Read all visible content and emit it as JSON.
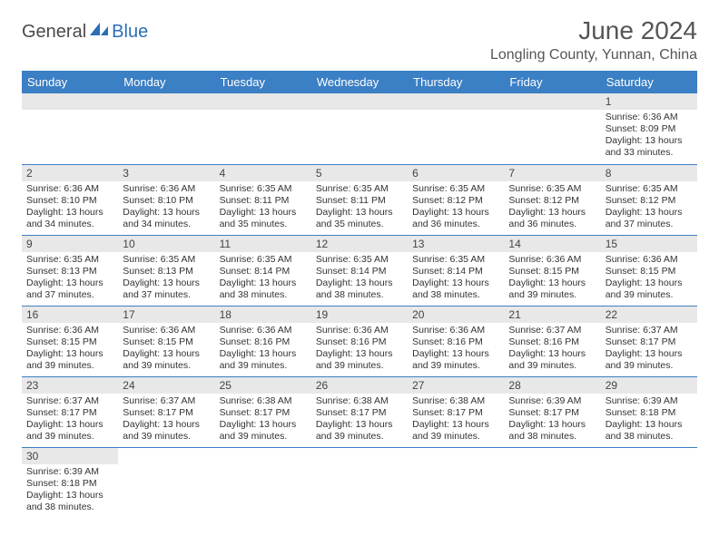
{
  "logo": {
    "part1": "General",
    "part2": "Blue"
  },
  "title": "June 2024",
  "location": "Longling County, Yunnan, China",
  "colors": {
    "header_bg": "#3b7fc4",
    "header_text": "#ffffff",
    "daynum_bg": "#e8e8e8",
    "border": "#3b7fc4",
    "logo_gray": "#4a4a4a",
    "logo_blue": "#2a6fb5"
  },
  "weekdays": [
    "Sunday",
    "Monday",
    "Tuesday",
    "Wednesday",
    "Thursday",
    "Friday",
    "Saturday"
  ],
  "weeks": [
    [
      null,
      null,
      null,
      null,
      null,
      null,
      {
        "n": "1",
        "sr": "6:36 AM",
        "ss": "8:09 PM",
        "dl": "13 hours and 33 minutes."
      }
    ],
    [
      {
        "n": "2",
        "sr": "6:36 AM",
        "ss": "8:10 PM",
        "dl": "13 hours and 34 minutes."
      },
      {
        "n": "3",
        "sr": "6:36 AM",
        "ss": "8:10 PM",
        "dl": "13 hours and 34 minutes."
      },
      {
        "n": "4",
        "sr": "6:35 AM",
        "ss": "8:11 PM",
        "dl": "13 hours and 35 minutes."
      },
      {
        "n": "5",
        "sr": "6:35 AM",
        "ss": "8:11 PM",
        "dl": "13 hours and 35 minutes."
      },
      {
        "n": "6",
        "sr": "6:35 AM",
        "ss": "8:12 PM",
        "dl": "13 hours and 36 minutes."
      },
      {
        "n": "7",
        "sr": "6:35 AM",
        "ss": "8:12 PM",
        "dl": "13 hours and 36 minutes."
      },
      {
        "n": "8",
        "sr": "6:35 AM",
        "ss": "8:12 PM",
        "dl": "13 hours and 37 minutes."
      }
    ],
    [
      {
        "n": "9",
        "sr": "6:35 AM",
        "ss": "8:13 PM",
        "dl": "13 hours and 37 minutes."
      },
      {
        "n": "10",
        "sr": "6:35 AM",
        "ss": "8:13 PM",
        "dl": "13 hours and 37 minutes."
      },
      {
        "n": "11",
        "sr": "6:35 AM",
        "ss": "8:14 PM",
        "dl": "13 hours and 38 minutes."
      },
      {
        "n": "12",
        "sr": "6:35 AM",
        "ss": "8:14 PM",
        "dl": "13 hours and 38 minutes."
      },
      {
        "n": "13",
        "sr": "6:35 AM",
        "ss": "8:14 PM",
        "dl": "13 hours and 38 minutes."
      },
      {
        "n": "14",
        "sr": "6:36 AM",
        "ss": "8:15 PM",
        "dl": "13 hours and 39 minutes."
      },
      {
        "n": "15",
        "sr": "6:36 AM",
        "ss": "8:15 PM",
        "dl": "13 hours and 39 minutes."
      }
    ],
    [
      {
        "n": "16",
        "sr": "6:36 AM",
        "ss": "8:15 PM",
        "dl": "13 hours and 39 minutes."
      },
      {
        "n": "17",
        "sr": "6:36 AM",
        "ss": "8:15 PM",
        "dl": "13 hours and 39 minutes."
      },
      {
        "n": "18",
        "sr": "6:36 AM",
        "ss": "8:16 PM",
        "dl": "13 hours and 39 minutes."
      },
      {
        "n": "19",
        "sr": "6:36 AM",
        "ss": "8:16 PM",
        "dl": "13 hours and 39 minutes."
      },
      {
        "n": "20",
        "sr": "6:36 AM",
        "ss": "8:16 PM",
        "dl": "13 hours and 39 minutes."
      },
      {
        "n": "21",
        "sr": "6:37 AM",
        "ss": "8:16 PM",
        "dl": "13 hours and 39 minutes."
      },
      {
        "n": "22",
        "sr": "6:37 AM",
        "ss": "8:17 PM",
        "dl": "13 hours and 39 minutes."
      }
    ],
    [
      {
        "n": "23",
        "sr": "6:37 AM",
        "ss": "8:17 PM",
        "dl": "13 hours and 39 minutes."
      },
      {
        "n": "24",
        "sr": "6:37 AM",
        "ss": "8:17 PM",
        "dl": "13 hours and 39 minutes."
      },
      {
        "n": "25",
        "sr": "6:38 AM",
        "ss": "8:17 PM",
        "dl": "13 hours and 39 minutes."
      },
      {
        "n": "26",
        "sr": "6:38 AM",
        "ss": "8:17 PM",
        "dl": "13 hours and 39 minutes."
      },
      {
        "n": "27",
        "sr": "6:38 AM",
        "ss": "8:17 PM",
        "dl": "13 hours and 39 minutes."
      },
      {
        "n": "28",
        "sr": "6:39 AM",
        "ss": "8:17 PM",
        "dl": "13 hours and 38 minutes."
      },
      {
        "n": "29",
        "sr": "6:39 AM",
        "ss": "8:18 PM",
        "dl": "13 hours and 38 minutes."
      }
    ],
    [
      {
        "n": "30",
        "sr": "6:39 AM",
        "ss": "8:18 PM",
        "dl": "13 hours and 38 minutes."
      },
      null,
      null,
      null,
      null,
      null,
      null
    ]
  ],
  "labels": {
    "sunrise": "Sunrise:",
    "sunset": "Sunset:",
    "daylight": "Daylight:"
  }
}
